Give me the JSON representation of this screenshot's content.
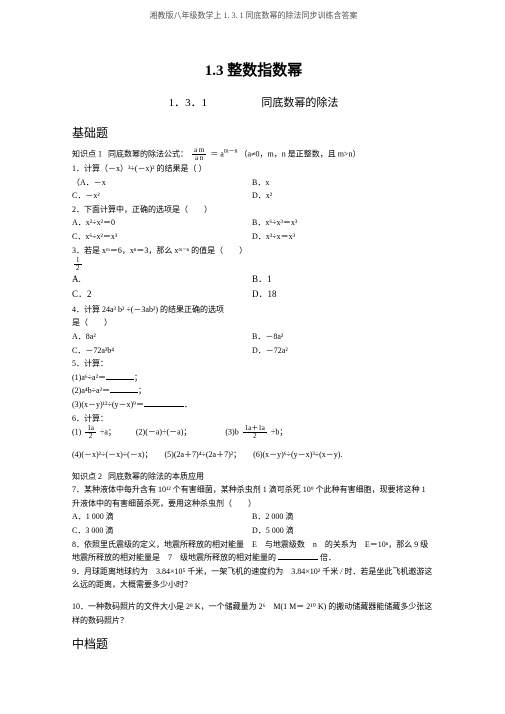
{
  "header": "湘教版八年级数学上 1. 3. 1 同底数幂的除法同步训练含答案",
  "title_main": "1.3  整数指数幂",
  "title_sub_num": "1．3．1",
  "title_sub_txt": "同底数幂的除法",
  "sec_basic": "基础题",
  "kp1_label": "知识点  1",
  "kp1_text": "同底数幂的除法公式：",
  "kp1_formula_eq": "＝ a",
  "kp1_formula_note": "（a≠0，m，n 是正整数，且 m>n）",
  "frac_top": "a m",
  "frac_bot": "a n",
  "frac_exp": "m－n",
  "q1": "1．计算（－x）³÷(－x)² 的结果是（     ）",
  "q1a": "（A．－x",
  "q1b": "B．x",
  "q1c": "C．－x²",
  "q1d": "D．x²",
  "q2": "2．下面计算中，正确的选项是（　　）",
  "q2a": "A．x²÷x²＝0",
  "q2b": "B．x⁶÷x³＝x³",
  "q2c": "C．x⁶÷x²＝x³",
  "q2d": "D．x³÷x＝x³",
  "q3": "3．若是 xᵐ＝6，xⁿ＝3，那么 xᵐ⁻ⁿ 的值是（　　）",
  "q3_frac_num": "1",
  "q3_frac_den": "2",
  "q3a": "A.",
  "q3b": "B．1",
  "q3c": "C．2",
  "q3d": "D．18",
  "q4": "4．计算  24a³ b² ÷(－3ab²) 的结果正确的选项",
  "q4_2": "是（　　）",
  "q4a": "A．8a²",
  "q4b": "B．－8a²",
  "q4c": "C．－72a²b⁴",
  "q4d": "D．－72a²",
  "q5": "5．计算：",
  "q5_1": "(1)a⁶÷a²＝",
  "q5_2": "(2)a⁴b÷a²＝",
  "q5_3": "(3)(x－y)¹²÷(y－x)⁹＝",
  "q6": "6．计算：",
  "q6_1a": "(1)",
  "q6_1b": "÷a；",
  "q6_2": "(2)(－a)÷(－a)；",
  "q6_3pre": "(3)b",
  "q6_3suf": "÷b；",
  "q6_frac_num": "1a",
  "q6_frac_den": "2",
  "q6_frac3_num": "1a＋1a",
  "q7": "(4)(－x)²÷(－x)÷(－x)；　　(5)(2a＋7)⁴÷(2a＋7)²；　　(6)(x－y)⁶÷(y－x)³÷(x－y).",
  "kp2_label": "知识点  2",
  "kp2_text": "同底数幂的除法的本质应用",
  "q7t": "7．某种液体中每升含有  10¹² 个有害细菌，某种杀虫剂  1 滴可杀死  10⁹ 个此种有害细胞，现要将这种 1 升液体中的有害细菌杀死，要用这种杀虫剂（　　）",
  "q7a": "A．1 000 滴",
  "q7b": "B．2 000 滴",
  "q7c": "C．3 000 滴",
  "q7d": "D．5 000 滴",
  "q8t": "8．依照里氏震级的定义，地震所释放的相对能量　E　与地震级数　n　的关系为　E＝10ⁿ，那么  9  级地震所释放的相对能量是　7　级地震所释放的相对能量的",
  "q8t2": "倍．",
  "q9t": "9．月球距离地球约为　3.84×10⁵ 千米，一架飞机的速度约为　3.84×10² 千米 / 时．若是坐此飞机遨游这么远的距离，大概需要多少小时？",
  "q10t": "10．一种数码照片的文件大小是 2⁸ K，一个储藏量为 2⁶　M(1 M＝ 2¹⁰ K) 的搬动储藏器能储藏多少张这样的数码照片？",
  "sec_mid": "中档题"
}
